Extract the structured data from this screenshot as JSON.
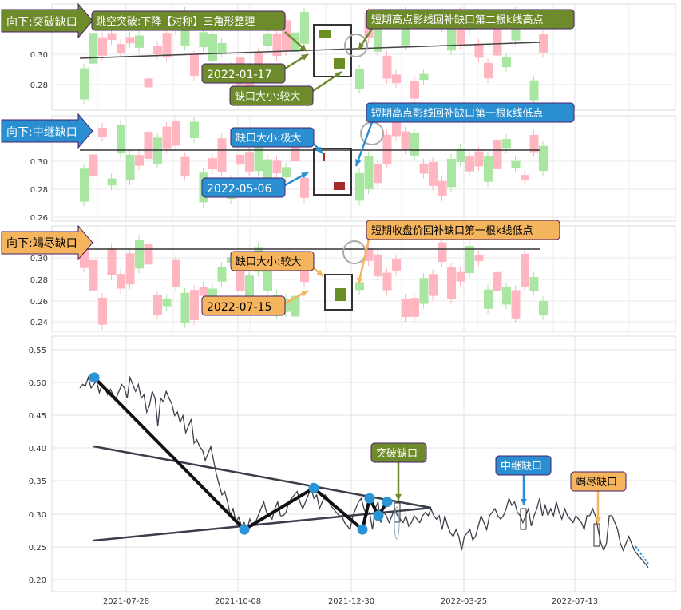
{
  "colors": {
    "green_box": "#6e8b2c",
    "blue_box": "#2a8fd1",
    "orange_box": "#f5b45e",
    "box_border": "#4b1d6b",
    "up_candle": "#ffb6c1",
    "down_candle": "#a8e6a1",
    "dark_red": "#a52a2a",
    "dark_green": "#6b8e23",
    "trend": "#222222",
    "pivot": "#2b94d6"
  },
  "panel1": {
    "tag": "向下:突破缺口",
    "title": "跳空突破:下降【对称】三角形整理",
    "note": "短期高点影线回补缺口第二根k线高点",
    "date": "2022-01-17",
    "size": "缺口大小:较大",
    "yticks": [
      "0.30",
      "0.28"
    ]
  },
  "panel2": {
    "tag": "向下:中继缺口",
    "note": "短期高点影线回补缺口第一根k线低点",
    "date": "2022-05-06",
    "size": "缺口大小:极大",
    "yticks": [
      "0.30",
      "0.28",
      "0.26"
    ]
  },
  "panel3": {
    "tag": "向下:竭尽缺口",
    "note": "短期收盘价回补缺口第一根k线低点",
    "date": "2022-07-15",
    "size": "缺口大小:较大",
    "yticks": [
      "0.30",
      "0.28",
      "0.26",
      "0.24"
    ]
  },
  "main": {
    "labels": {
      "breakaway": "突破缺口",
      "runaway": "中继缺口",
      "exhaustion": "竭尽缺口"
    }
  },
  "chart_data": {
    "type": "line",
    "title": "",
    "ylim": [
      0.19,
      0.56
    ],
    "yticks": [
      "0.55",
      "0.50",
      "0.45",
      "0.40",
      "0.35",
      "0.30",
      "0.25",
      "0.20"
    ],
    "xticks": [
      "2021-07-28",
      "2021-10-08",
      "2021-12-30",
      "2022-03-25",
      "2022-07-13"
    ],
    "series": [
      {
        "values": [
          0.485,
          0.49,
          0.488,
          0.5,
          0.485,
          0.49,
          0.495,
          0.478,
          0.49,
          0.487,
          0.475,
          0.483,
          0.474,
          0.47,
          0.48,
          0.49,
          0.485,
          0.47,
          0.5,
          0.49,
          0.48,
          0.49,
          0.47,
          0.475,
          0.45,
          0.46,
          0.48,
          0.47,
          0.43,
          0.47,
          0.465,
          0.48,
          0.47,
          0.462,
          0.445,
          0.45,
          0.435,
          0.445,
          0.42,
          0.43,
          0.44,
          0.405,
          0.41,
          0.4,
          0.395,
          0.38,
          0.39,
          0.4,
          0.38,
          0.36,
          0.345,
          0.33,
          0.335,
          0.32,
          0.3,
          0.31,
          0.29,
          0.298,
          0.285,
          0.29,
          0.28,
          0.295,
          0.285,
          0.29,
          0.3,
          0.31,
          0.32,
          0.305,
          0.3,
          0.295,
          0.31,
          0.32,
          0.3,
          0.3,
          0.305,
          0.32,
          0.325,
          0.33,
          0.335,
          0.32,
          0.31,
          0.32,
          0.33,
          0.34,
          0.325,
          0.33,
          0.31,
          0.32,
          0.33,
          0.325,
          0.315,
          0.31,
          0.305,
          0.3,
          0.3,
          0.29,
          0.285,
          0.28,
          0.3,
          0.31,
          0.32,
          0.325,
          0.31,
          0.3,
          0.305,
          0.28,
          0.31,
          0.32,
          0.29,
          0.305,
          0.3,
          0.29,
          0.3,
          0.31,
          0.3,
          0.295,
          0.29,
          0.3,
          0.285,
          0.29,
          0.3,
          0.295,
          0.29,
          0.3,
          0.305,
          0.3,
          0.31,
          0.3,
          0.295,
          0.3,
          0.28,
          0.3,
          0.285,
          0.275,
          0.27,
          0.28,
          0.27,
          0.25,
          0.27,
          0.275,
          0.28,
          0.265,
          0.27,
          0.285,
          0.3,
          0.29,
          0.28,
          0.3,
          0.305,
          0.31,
          0.3,
          0.295,
          0.3,
          0.31,
          0.325,
          0.315,
          0.32,
          0.305,
          0.3,
          0.29,
          0.3,
          0.31,
          0.285,
          0.3,
          0.31,
          0.325,
          0.3,
          0.315,
          0.3,
          0.31,
          0.3,
          0.32,
          0.305,
          0.295,
          0.31,
          0.3,
          0.295,
          0.29,
          0.3,
          0.295,
          0.29,
          0.28,
          0.3,
          0.3,
          0.31,
          0.3,
          0.28,
          0.26,
          0.25,
          0.26,
          0.3,
          0.3,
          0.29,
          0.28,
          0.26,
          0.25,
          0.26,
          0.27,
          0.26,
          0.25,
          0.245,
          0.24,
          0.235,
          0.23,
          0.225
        ]
      }
    ],
    "pivots": [
      0.5,
      0.28,
      0.34,
      0.28,
      0.325,
      0.3,
      0.32
    ],
    "gaps": [
      {
        "label": "突破缺口",
        "date": "2022-01-17"
      },
      {
        "label": "中继缺口",
        "date": "2022-05-06"
      },
      {
        "label": "竭尽缺口",
        "date": "2022-07-15"
      }
    ]
  }
}
